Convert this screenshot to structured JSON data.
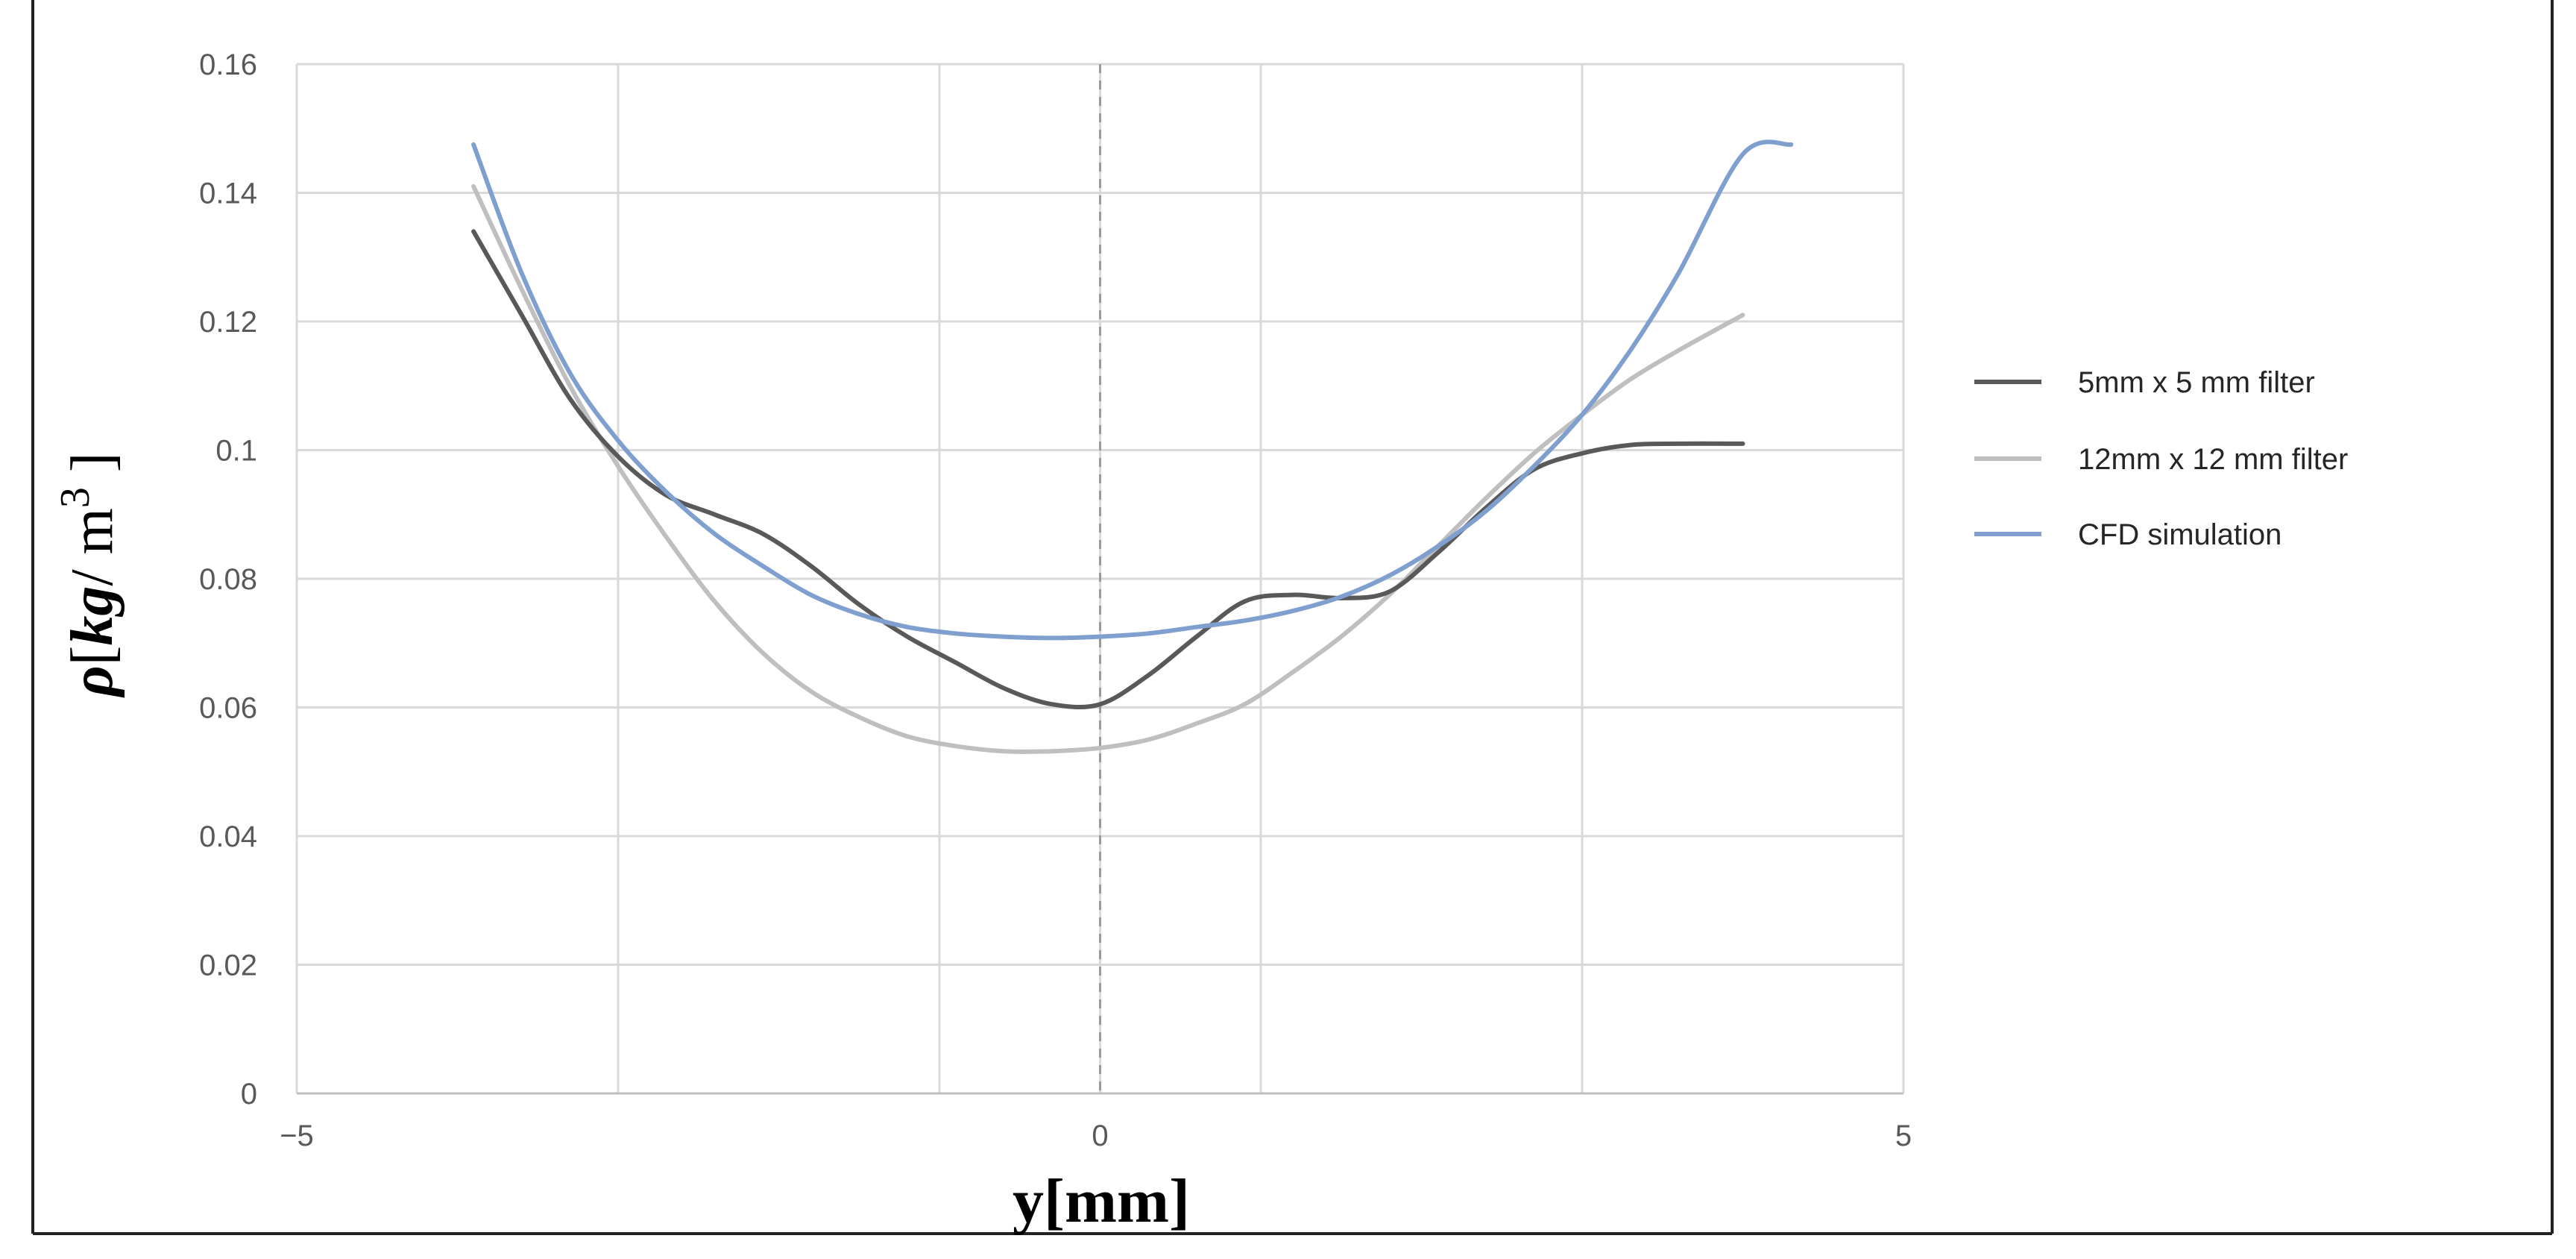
{
  "chart_data": {
    "type": "line",
    "title": "",
    "xlabel": "y[mm]",
    "ylabel": {
      "rho": "ρ",
      "bracket_open": "[",
      "kg": "kg",
      "slash": "/ m",
      "exp": "3",
      "bracket_close": " ]"
    },
    "xlim": [
      -5,
      5
    ],
    "ylim": [
      0,
      0.16
    ],
    "x_ticks": [
      -5,
      0,
      5
    ],
    "x_tick_labels": [
      "−5",
      "0",
      "5"
    ],
    "x_gridlines": [
      -3,
      -1,
      1,
      3
    ],
    "reference_line_x": 0,
    "y_ticks": [
      0,
      0.02,
      0.04,
      0.06,
      0.08,
      0.1,
      0.12,
      0.14,
      0.16
    ],
    "y_tick_labels": [
      "0",
      "0.02",
      "0.04",
      "0.06",
      "0.08",
      "0.1",
      "0.12",
      "0.14",
      "0.16"
    ],
    "grid": true,
    "legend_position": "right",
    "series": [
      {
        "name": "5mm x 5 mm filter",
        "color": "#595959",
        "points": [
          [
            -3.9,
            0.134
          ],
          [
            -3.6,
            0.121
          ],
          [
            -3.3,
            0.108
          ],
          [
            -3.0,
            0.099
          ],
          [
            -2.7,
            0.093
          ],
          [
            -2.4,
            0.09
          ],
          [
            -2.1,
            0.087
          ],
          [
            -1.8,
            0.082
          ],
          [
            -1.5,
            0.076
          ],
          [
            -1.2,
            0.071
          ],
          [
            -0.9,
            0.067
          ],
          [
            -0.6,
            0.063
          ],
          [
            -0.3,
            0.0605
          ],
          [
            0.0,
            0.0605
          ],
          [
            0.3,
            0.065
          ],
          [
            0.6,
            0.071
          ],
          [
            0.9,
            0.0765
          ],
          [
            1.2,
            0.0775
          ],
          [
            1.5,
            0.077
          ],
          [
            1.8,
            0.078
          ],
          [
            2.1,
            0.084
          ],
          [
            2.4,
            0.091
          ],
          [
            2.7,
            0.097
          ],
          [
            3.0,
            0.0995
          ],
          [
            3.3,
            0.1008
          ],
          [
            3.6,
            0.101
          ],
          [
            4.0,
            0.101
          ]
        ]
      },
      {
        "name": "12mm x 12 mm filter",
        "color": "#bfbfbf",
        "points": [
          [
            -3.9,
            0.141
          ],
          [
            -3.6,
            0.125
          ],
          [
            -3.3,
            0.11
          ],
          [
            -3.0,
            0.0975
          ],
          [
            -2.7,
            0.0865
          ],
          [
            -2.4,
            0.0765
          ],
          [
            -2.1,
            0.0685
          ],
          [
            -1.8,
            0.0625
          ],
          [
            -1.5,
            0.0585
          ],
          [
            -1.2,
            0.0555
          ],
          [
            -0.9,
            0.054
          ],
          [
            -0.6,
            0.0532
          ],
          [
            -0.3,
            0.0532
          ],
          [
            0.0,
            0.0537
          ],
          [
            0.3,
            0.055
          ],
          [
            0.6,
            0.0575
          ],
          [
            0.9,
            0.0605
          ],
          [
            1.2,
            0.0655
          ],
          [
            1.5,
            0.071
          ],
          [
            1.8,
            0.0775
          ],
          [
            2.1,
            0.085
          ],
          [
            2.4,
            0.0925
          ],
          [
            2.7,
            0.0995
          ],
          [
            3.0,
            0.1055
          ],
          [
            3.3,
            0.111
          ],
          [
            3.6,
            0.1155
          ],
          [
            4.0,
            0.121
          ]
        ]
      },
      {
        "name": "CFD simulation",
        "color": "#7f9fcf",
        "points": [
          [
            -3.9,
            0.1475
          ],
          [
            -3.6,
            0.1275
          ],
          [
            -3.3,
            0.112
          ],
          [
            -3.0,
            0.1015
          ],
          [
            -2.7,
            0.0935
          ],
          [
            -2.4,
            0.087
          ],
          [
            -2.1,
            0.082
          ],
          [
            -1.8,
            0.0775
          ],
          [
            -1.5,
            0.0745
          ],
          [
            -1.2,
            0.0725
          ],
          [
            -0.9,
            0.0715
          ],
          [
            -0.6,
            0.071
          ],
          [
            -0.3,
            0.0708
          ],
          [
            0.0,
            0.071
          ],
          [
            0.3,
            0.0715
          ],
          [
            0.6,
            0.0725
          ],
          [
            0.9,
            0.0735
          ],
          [
            1.2,
            0.075
          ],
          [
            1.5,
            0.0772
          ],
          [
            1.8,
            0.0805
          ],
          [
            2.1,
            0.085
          ],
          [
            2.4,
            0.0905
          ],
          [
            2.7,
            0.0975
          ],
          [
            3.0,
            0.1055
          ],
          [
            3.3,
            0.1155
          ],
          [
            3.6,
            0.1275
          ],
          [
            4.0,
            0.146
          ],
          [
            4.3,
            0.1475
          ]
        ]
      }
    ]
  }
}
